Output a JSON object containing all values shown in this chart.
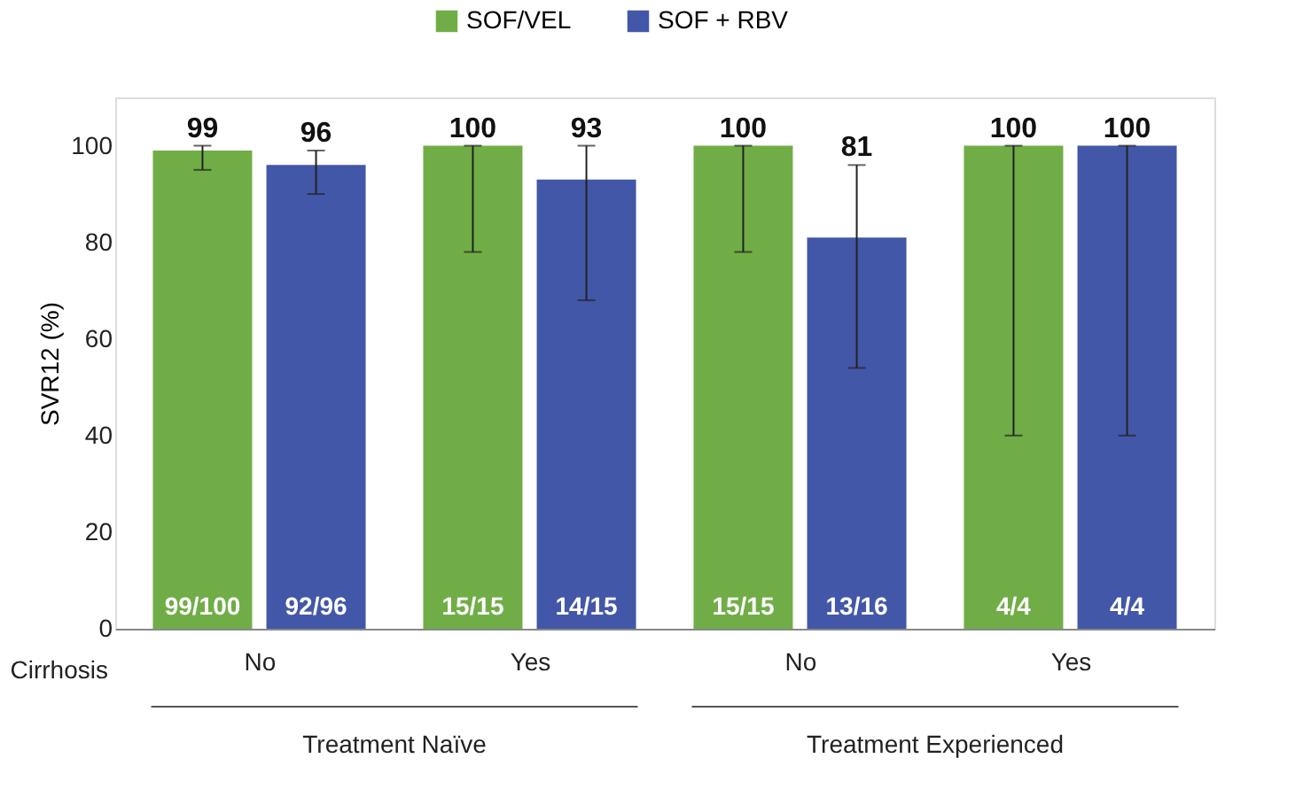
{
  "chart_data": {
    "type": "bar",
    "ylabel": "SVR12 (%)",
    "categories": [
      "No",
      "Yes",
      "No",
      "Yes"
    ],
    "series": [
      {
        "name": "SOF/VEL",
        "color": "#70ad47",
        "values": [
          99,
          100,
          100,
          100
        ],
        "errors": [
          [
            95,
            100
          ],
          [
            78,
            100
          ],
          [
            78,
            100
          ],
          [
            40,
            100
          ]
        ]
      },
      {
        "name": "SOF + RBV",
        "color": "#4357a8",
        "values": [
          96,
          93,
          81,
          100
        ],
        "errors": [
          [
            90,
            99
          ],
          [
            68,
            100
          ],
          [
            54,
            96
          ],
          [
            40,
            100
          ]
        ]
      }
    ],
    "ylim": [
      0,
      110
    ],
    "yticks": [
      0,
      20,
      40,
      60,
      80,
      100
    ],
    "grid": false,
    "legend": "top",
    "data_labels": true,
    "annotations": [
      "99/100",
      "15/15",
      "15/15",
      "4/4",
      "92/96",
      "14/15",
      "13/16",
      "4/4",
      "Cirrhosis",
      "Treatment Naïve",
      "Treatment Experienced"
    ]
  }
}
